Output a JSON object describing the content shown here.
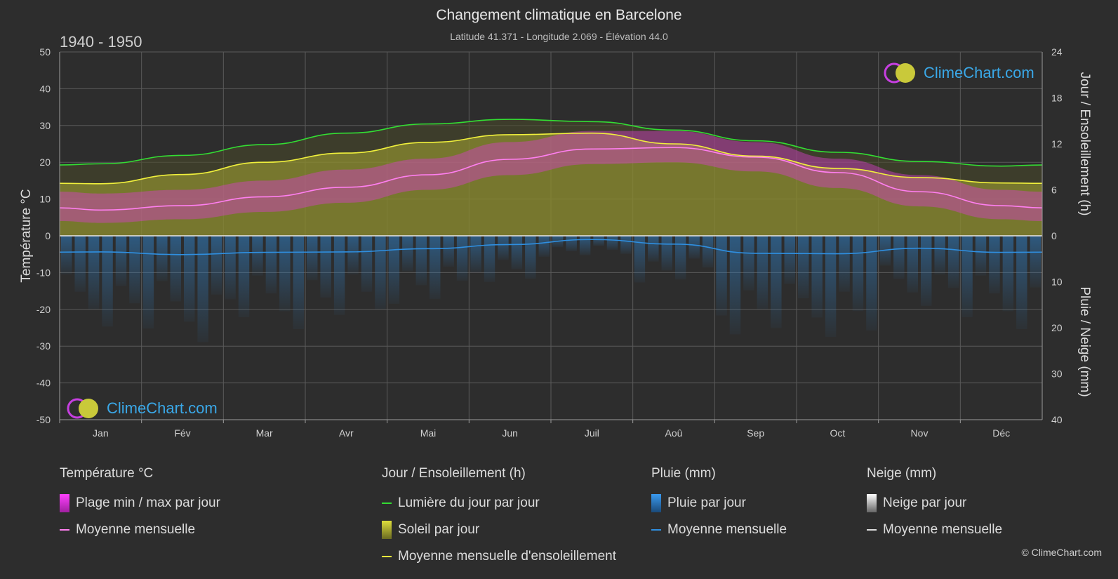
{
  "header": {
    "title": "Changement climatique en Barcelone",
    "subtitle": "Latitude 41.371 - Longitude 2.069 - Élévation 44.0",
    "period": "1940 - 1950"
  },
  "brand": {
    "name": "ClimeChart.com",
    "copyright": "© ClimeChart.com"
  },
  "axes": {
    "left_label": "Température °C",
    "right_top_label": "Jour / Ensoleillement (h)",
    "right_bottom_label": "Pluie / Neige (mm)"
  },
  "legend": {
    "temperature": {
      "title": "Température °C",
      "range": "Plage min / max par jour",
      "mean": "Moyenne mensuelle"
    },
    "sun": {
      "title": "Jour / Ensoleillement (h)",
      "daylight": "Lumière du jour par jour",
      "sunshine": "Soleil par jour",
      "sunshine_mean": "Moyenne mensuelle d'ensoleillement"
    },
    "rain": {
      "title": "Pluie (mm)",
      "daily": "Pluie par jour",
      "mean": "Moyenne mensuelle"
    },
    "snow": {
      "title": "Neige (mm)",
      "daily": "Neige par jour",
      "mean": "Moyenne mensuelle"
    }
  },
  "colors": {
    "background": "#2d2d2d",
    "temp_range": "#d63fc9",
    "temp_mean": "#ff7ff0",
    "daylight": "#33dd33",
    "sunshine_fill": "#a8a832",
    "sunshine_mean": "#f0f03c",
    "rain": "#2f7fc4",
    "rain_mean": "#2f8fe0",
    "snow": "#dddddd",
    "grid": "#5a5a5a"
  },
  "chart_data": {
    "type": "area",
    "categories": [
      "Jan",
      "Fév",
      "Mar",
      "Avr",
      "Mai",
      "Jun",
      "Juil",
      "Aoû",
      "Sep",
      "Oct",
      "Nov",
      "Déc"
    ],
    "y_left": {
      "label": "Température °C",
      "range": [
        -50,
        50
      ],
      "ticks": [
        50,
        40,
        30,
        20,
        10,
        0,
        -10,
        -20,
        -30,
        -40,
        -50
      ]
    },
    "y_right_top": {
      "label": "Jour / Ensoleillement (h)",
      "range": [
        0,
        24
      ],
      "ticks": [
        24,
        18,
        12,
        6,
        0
      ]
    },
    "y_right_bottom": {
      "label": "Pluie / Neige (mm)",
      "range": [
        0,
        40
      ],
      "ticks": [
        0,
        10,
        20,
        30,
        40
      ]
    },
    "series": [
      {
        "name": "Moyenne mensuelle",
        "group": "temperature",
        "values": [
          7.0,
          8.2,
          10.6,
          13.2,
          16.6,
          20.8,
          23.6,
          24.0,
          21.4,
          17.2,
          12.0,
          8.2
        ]
      },
      {
        "name": "Plage min / max par jour (min)",
        "group": "temperature",
        "values": [
          3.5,
          4.5,
          6.5,
          9.0,
          12.5,
          16.5,
          19.5,
          20.0,
          17.5,
          13.0,
          8.0,
          4.5
        ]
      },
      {
        "name": "Plage min / max par jour (max)",
        "group": "temperature",
        "values": [
          11.5,
          12.5,
          15.0,
          18.0,
          21.0,
          25.5,
          28.5,
          28.5,
          25.5,
          21.0,
          16.5,
          12.5
        ]
      },
      {
        "name": "Lumière du jour par jour",
        "group": "sun",
        "unit": "h",
        "values": [
          9.4,
          10.5,
          11.9,
          13.4,
          14.6,
          15.2,
          14.9,
          13.8,
          12.4,
          10.9,
          9.7,
          9.1
        ]
      },
      {
        "name": "Moyenne mensuelle d'ensoleillement",
        "group": "sun",
        "unit": "h",
        "values": [
          6.8,
          8.0,
          9.6,
          10.8,
          12.2,
          13.2,
          13.4,
          12.0,
          10.4,
          8.8,
          7.6,
          6.9
        ]
      },
      {
        "name": "Moyenne mensuelle",
        "group": "rain",
        "unit": "mm",
        "values": [
          3.5,
          4.1,
          3.6,
          3.5,
          2.8,
          1.9,
          0.8,
          1.8,
          3.8,
          3.9,
          2.7,
          3.6
        ]
      }
    ]
  }
}
